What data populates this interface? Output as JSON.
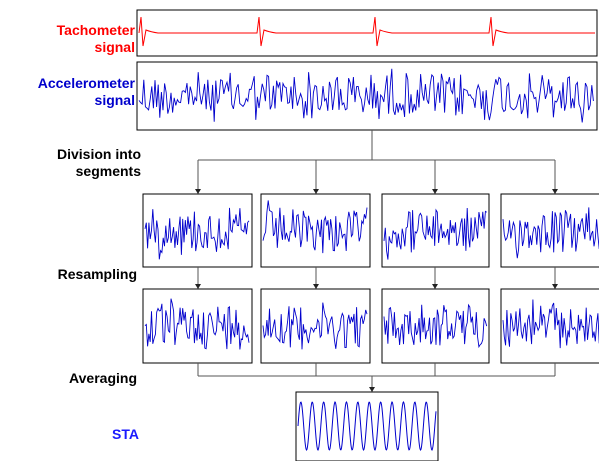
{
  "labels": {
    "tachometer": {
      "line1": "Tachometer",
      "line2": "signal"
    },
    "accelerometer": {
      "line1": "Accelerometer",
      "line2": "signal"
    },
    "division": {
      "line1": "Division into",
      "line2": "segments"
    },
    "resampling": "Resampling",
    "averaging": "Averaging",
    "sta": "STA"
  },
  "colors": {
    "tachometer": "#ff0000",
    "accelerometer": "#0000cc",
    "sta_label": "#1a1aff",
    "process_label": "#000000",
    "frame": "#000000",
    "connector": "#555555"
  },
  "segments": {
    "count": 4
  }
}
